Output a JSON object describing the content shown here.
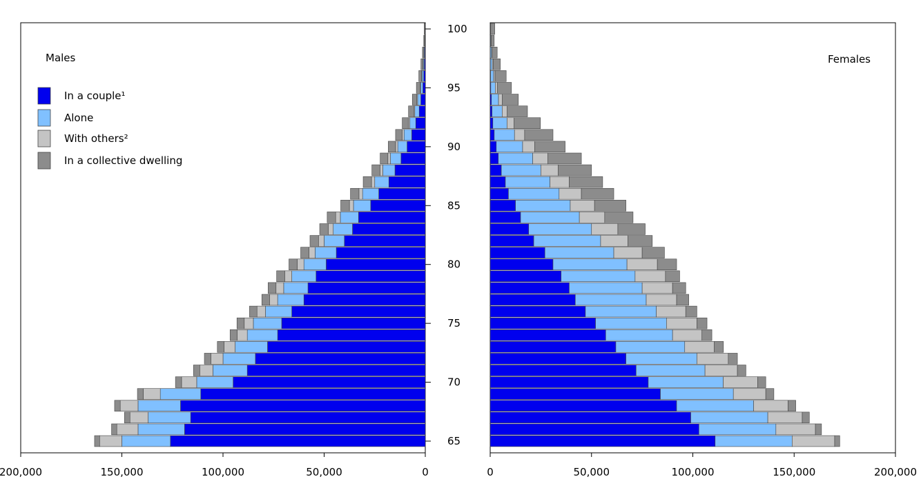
{
  "chart_data": {
    "type": "bar",
    "layout": "population pyramid (two horizontal stacked bar panels)",
    "y_axis": {
      "ages": [
        65,
        66,
        67,
        68,
        69,
        70,
        71,
        72,
        73,
        74,
        75,
        76,
        77,
        78,
        79,
        80,
        81,
        82,
        83,
        84,
        85,
        86,
        87,
        88,
        89,
        90,
        91,
        92,
        93,
        94,
        95,
        96,
        97,
        98,
        99,
        100
      ],
      "tick_labels": [
        "65",
        "70",
        "75",
        "80",
        "85",
        "90",
        "95",
        "100"
      ]
    },
    "x_axis": {
      "range": [
        0,
        200000
      ],
      "tick_values": [
        0,
        50000,
        100000,
        150000,
        200000
      ],
      "males_tick_labels": [
        "200,000",
        "150,000",
        "100,000",
        "50,000",
        "0"
      ],
      "females_tick_labels": [
        "0",
        "50,000",
        "100,000",
        "150,000",
        "200,000"
      ]
    },
    "grid": false,
    "legend": {
      "placement": "top-left of males panel",
      "entries": [
        {
          "key": "couple",
          "label": "In a couple¹",
          "color": "#0000ee"
        },
        {
          "key": "alone",
          "label": "Alone",
          "color": "#80c0ff"
        },
        {
          "key": "others",
          "label": "With others²",
          "color": "#c4c4c4"
        },
        {
          "key": "collective",
          "label": "In a collective dwelling",
          "color": "#8c8c8c"
        }
      ]
    },
    "panels": [
      {
        "name": "Males",
        "series": [
          {
            "key": "couple",
            "values": [
              126000,
              119000,
              116000,
              121000,
              111000,
              95000,
              88000,
              84000,
              78000,
              73000,
              71000,
              66000,
              60000,
              58000,
              54000,
              49000,
              44000,
              40000,
              36000,
              33000,
              27000,
              23000,
              18000,
              15000,
              12000,
              9000,
              6700,
              4700,
              3000,
              2200,
              1200,
              800,
              500,
              300,
              150,
              80
            ]
          },
          {
            "key": "alone",
            "values": [
              24000,
              23000,
              21000,
              21000,
              20000,
              18000,
              17000,
              16000,
              16000,
              15000,
              14000,
              13000,
              13000,
              12000,
              12000,
              11000,
              10500,
              10000,
              9500,
              9000,
              8500,
              8000,
              7000,
              6000,
              5200,
              4600,
              3800,
              3000,
              2200,
              1600,
              1100,
              800,
              500,
              300,
              150,
              100
            ]
          },
          {
            "key": "others",
            "values": [
              11000,
              10500,
              9000,
              8800,
              8400,
              7500,
              6500,
              6000,
              5500,
              5000,
              4500,
              4200,
              4000,
              3800,
              3500,
              3300,
              3000,
              2800,
              2500,
              2300,
              2000,
              1800,
              1600,
              1400,
              1300,
              1100,
              900,
              700,
              500,
              400,
              300,
              200,
              150,
              100,
              60,
              40
            ]
          },
          {
            "key": "collective",
            "values": [
              2500,
              2600,
              2700,
              2800,
              2900,
              3000,
              3100,
              3200,
              3300,
              3500,
              3600,
              3700,
              3800,
              3900,
              4000,
              4100,
              4100,
              4200,
              4200,
              4200,
              4300,
              4200,
              4100,
              4000,
              3800,
              3600,
              3300,
              3000,
              2600,
              2200,
              1800,
              1400,
              1000,
              700,
              400,
              300
            ]
          }
        ]
      },
      {
        "name": "Females",
        "series": [
          {
            "key": "couple",
            "values": [
              111000,
              103000,
              99000,
              92000,
              84000,
              78000,
              72000,
              67000,
              62000,
              57000,
              52000,
              47000,
              42000,
              39000,
              35000,
              31000,
              27000,
              21500,
              19000,
              15000,
              12500,
              9000,
              7500,
              5500,
              4000,
              3000,
              2000,
              1300,
              900,
              600,
              300,
              200,
              100,
              60,
              30,
              20
            ]
          },
          {
            "key": "alone",
            "values": [
              38000,
              38000,
              38000,
              38000,
              36000,
              37000,
              34000,
              35000,
              34000,
              33000,
              35000,
              35000,
              35000,
              36000,
              36500,
              36500,
              34000,
              33000,
              31000,
              29000,
              27000,
              25000,
              22000,
              19500,
              17000,
              13000,
              10000,
              7000,
              5000,
              3500,
              2200,
              1500,
              900,
              600,
              300,
              150
            ]
          },
          {
            "key": "others",
            "values": [
              21000,
              19500,
              17000,
              17000,
              16000,
              17000,
              16000,
              15500,
              14500,
              14500,
              15000,
              14500,
              15000,
              15000,
              15000,
              15000,
              14000,
              13500,
              13000,
              12500,
              12000,
              11000,
              9500,
              8500,
              7500,
              6000,
              5000,
              3500,
              2500,
              1800,
              1000,
              700,
              500,
              300,
              150,
              80
            ]
          },
          {
            "key": "collective",
            "values": [
              2500,
              3000,
              3500,
              3800,
              4000,
              4000,
              4200,
              4500,
              4600,
              4900,
              5000,
              5500,
              6000,
              6500,
              7000,
              9500,
              11000,
              12000,
              13500,
              14000,
              15500,
              16000,
              16500,
              16500,
              16500,
              15000,
              14000,
              13000,
              10000,
              8000,
              7000,
              5500,
              3500,
              2500,
              1500,
              2000
            ]
          }
        ]
      }
    ]
  }
}
